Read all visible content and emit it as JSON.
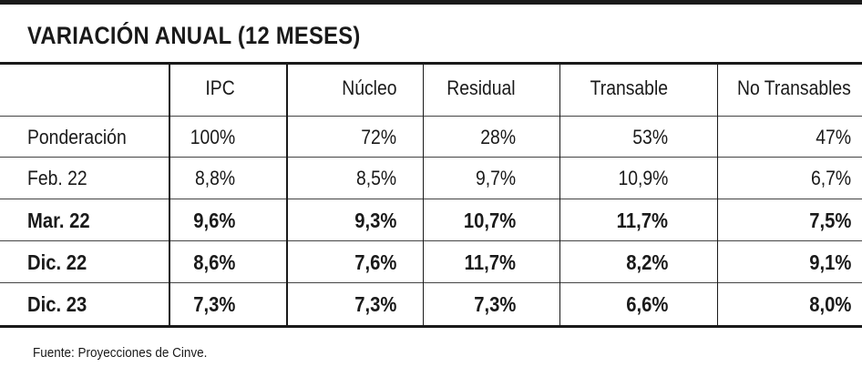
{
  "chart_data": {
    "type": "table",
    "title": "VARIACIÓN ANUAL (12 MESES)",
    "columns": [
      "",
      "IPC",
      "Núcleo",
      "Residual",
      "Transable",
      "No Transables"
    ],
    "rows": [
      {
        "label": "Ponderación",
        "bold": false,
        "values": [
          "100%",
          "72%",
          "28%",
          "53%",
          "47%"
        ]
      },
      {
        "label": "Feb. 22",
        "bold": false,
        "values": [
          "8,8%",
          "8,5%",
          "9,7%",
          "10,9%",
          "6,7%"
        ]
      },
      {
        "label": "Mar. 22",
        "bold": true,
        "values": [
          "9,6%",
          "9,3%",
          "10,7%",
          "11,7%",
          "7,5%"
        ]
      },
      {
        "label": "Dic. 22",
        "bold": true,
        "values": [
          "8,6%",
          "7,6%",
          "11,7%",
          "8,2%",
          "9,1%"
        ]
      },
      {
        "label": "Dic. 23",
        "bold": true,
        "values": [
          "7,3%",
          "7,3%",
          "7,3%",
          "6,6%",
          "8,0%"
        ]
      }
    ],
    "source": "Fuente: Proyecciones de Cinve."
  }
}
